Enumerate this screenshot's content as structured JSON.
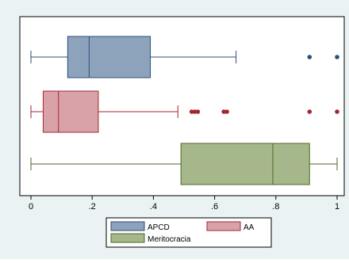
{
  "chart_data": {
    "type": "boxplot",
    "orientation": "horizontal",
    "xlim": [
      0,
      1
    ],
    "x_ticks": [
      0,
      0.2,
      0.4,
      0.6,
      0.8,
      1
    ],
    "x_tick_labels": [
      "0",
      ".2",
      ".4",
      ".6",
      ".8",
      "1"
    ],
    "grid": false,
    "legend_position": "bottom",
    "series": [
      {
        "name": "APCD",
        "color": "#8da2bb",
        "stroke": "#2b4f79",
        "whisker_low": 0.0,
        "q1": 0.12,
        "median": 0.19,
        "q3": 0.39,
        "whisker_high": 0.67,
        "outliers": [
          0.91,
          1.0
        ]
      },
      {
        "name": "AA",
        "color": "#d9a2a8",
        "stroke": "#a5262f",
        "whisker_low": 0.0,
        "q1": 0.04,
        "median": 0.09,
        "q3": 0.22,
        "whisker_high": 0.48,
        "outliers": [
          0.525,
          0.535,
          0.545,
          0.63,
          0.64,
          0.91,
          1.0
        ]
      },
      {
        "name": "Meritocracia",
        "color": "#a5b78b",
        "stroke": "#4e6a26",
        "whisker_low": 0.0,
        "q1": 0.49,
        "median": 0.79,
        "q3": 0.91,
        "whisker_high": 1.0,
        "outliers": []
      }
    ]
  }
}
